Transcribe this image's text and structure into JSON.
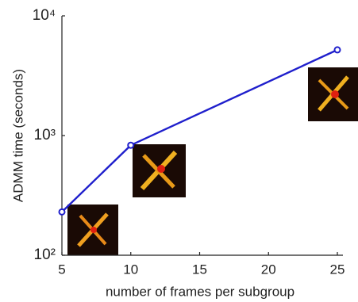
{
  "chart_data": {
    "type": "line",
    "xlabel": "number of frames per subgroup",
    "ylabel": "ADMM time (seconds)",
    "x": [
      5,
      10,
      25
    ],
    "series": [
      {
        "color": "#1f1fcc",
        "values": [
          230,
          830,
          5200
        ]
      }
    ],
    "xlim": [
      5,
      25
    ],
    "xticks": [
      5,
      10,
      15,
      20,
      25
    ],
    "ylim": [
      100,
      10000
    ],
    "log_y": true,
    "yticks": [
      {
        "value": 100,
        "label": "10²"
      },
      {
        "value": 1000,
        "label": "10³"
      },
      {
        "value": 10000,
        "label": "10⁴"
      }
    ]
  }
}
